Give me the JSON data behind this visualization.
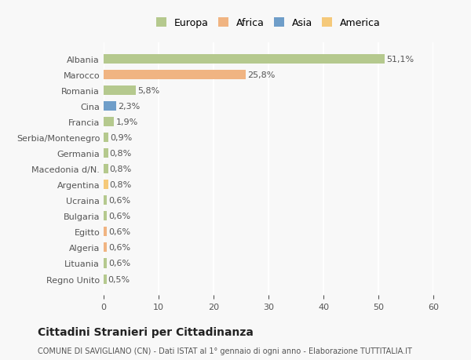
{
  "categories": [
    "Albania",
    "Marocco",
    "Romania",
    "Cina",
    "Francia",
    "Serbia/Montenegro",
    "Germania",
    "Macedonia d/N.",
    "Argentina",
    "Ucraina",
    "Bulgaria",
    "Egitto",
    "Algeria",
    "Lituania",
    "Regno Unito"
  ],
  "values": [
    51.1,
    25.8,
    5.8,
    2.3,
    1.9,
    0.9,
    0.8,
    0.8,
    0.8,
    0.6,
    0.6,
    0.6,
    0.6,
    0.6,
    0.5
  ],
  "labels": [
    "51,1%",
    "25,8%",
    "5,8%",
    "2,3%",
    "1,9%",
    "0,9%",
    "0,8%",
    "0,8%",
    "0,8%",
    "0,6%",
    "0,6%",
    "0,6%",
    "0,6%",
    "0,6%",
    "0,5%"
  ],
  "colors": [
    "#b5c98e",
    "#f0b482",
    "#b5c98e",
    "#6f9ec9",
    "#b5c98e",
    "#b5c98e",
    "#b5c98e",
    "#b5c98e",
    "#f5c97a",
    "#b5c98e",
    "#b5c98e",
    "#f0b482",
    "#f0b482",
    "#b5c98e",
    "#b5c98e"
  ],
  "legend": [
    {
      "label": "Europa",
      "color": "#b5c98e"
    },
    {
      "label": "Africa",
      "color": "#f0b482"
    },
    {
      "label": "Asia",
      "color": "#6f9ec9"
    },
    {
      "label": "America",
      "color": "#f5c97a"
    }
  ],
  "xlim": [
    0,
    60
  ],
  "xticks": [
    0,
    10,
    20,
    30,
    40,
    50,
    60
  ],
  "title": "Cittadini Stranieri per Cittadinanza",
  "subtitle": "COMUNE DI SAVIGLIANO (CN) - Dati ISTAT al 1° gennaio di ogni anno - Elaborazione TUTTITALIA.IT",
  "background_color": "#f8f8f8",
  "grid_color": "#ffffff",
  "bar_height": 0.6
}
